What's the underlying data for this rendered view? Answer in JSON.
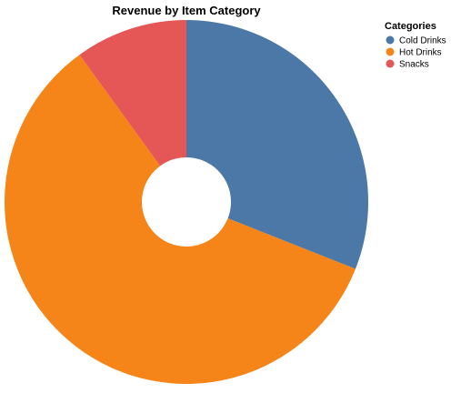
{
  "chart_data": {
    "type": "pie",
    "donut": true,
    "title": "Revenue by Item Category",
    "legend": {
      "title": "Categories",
      "placement": "top-right"
    },
    "categories": [
      "Cold Drinks",
      "Hot Drinks",
      "Snacks"
    ],
    "values": [
      31,
      59,
      10
    ],
    "value_unit": "percent of revenue (estimated from slice angles)",
    "colors": [
      "#4c78a8",
      "#f58518",
      "#e45756"
    ],
    "start_angle": "12 o'clock",
    "direction": "clockwise"
  }
}
